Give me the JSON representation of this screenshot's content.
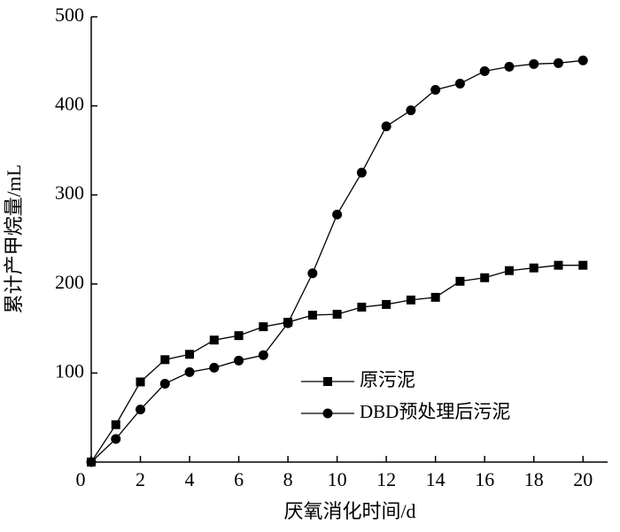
{
  "chart_data": {
    "type": "line",
    "x_label": "厌氧消化时间/d",
    "y_label": "累计产甲烷量/mL",
    "x": [
      0,
      1,
      2,
      3,
      4,
      5,
      6,
      7,
      8,
      9,
      10,
      11,
      12,
      13,
      14,
      15,
      16,
      17,
      18,
      19,
      20
    ],
    "series": [
      {
        "name": "原污泥",
        "color": "#000000",
        "marker": "square",
        "values": [
          0,
          42,
          90,
          115,
          121,
          137,
          142,
          152,
          157,
          165,
          166,
          174,
          177,
          182,
          185,
          203,
          207,
          215,
          218,
          221,
          221
        ]
      },
      {
        "name": "DBD预处理后污泥",
        "color": "#000000",
        "marker": "circle",
        "values": [
          0,
          26,
          59,
          88,
          101,
          106,
          114,
          120,
          156,
          212,
          278,
          325,
          377,
          395,
          418,
          425,
          439,
          444,
          447,
          448,
          451
        ]
      }
    ],
    "xlim": [
      0,
      21
    ],
    "ylim": [
      0,
      500
    ],
    "xticks": [
      0,
      2,
      4,
      6,
      8,
      10,
      12,
      14,
      16,
      18,
      20
    ],
    "yticks": [
      100,
      200,
      300,
      400,
      500
    ]
  }
}
